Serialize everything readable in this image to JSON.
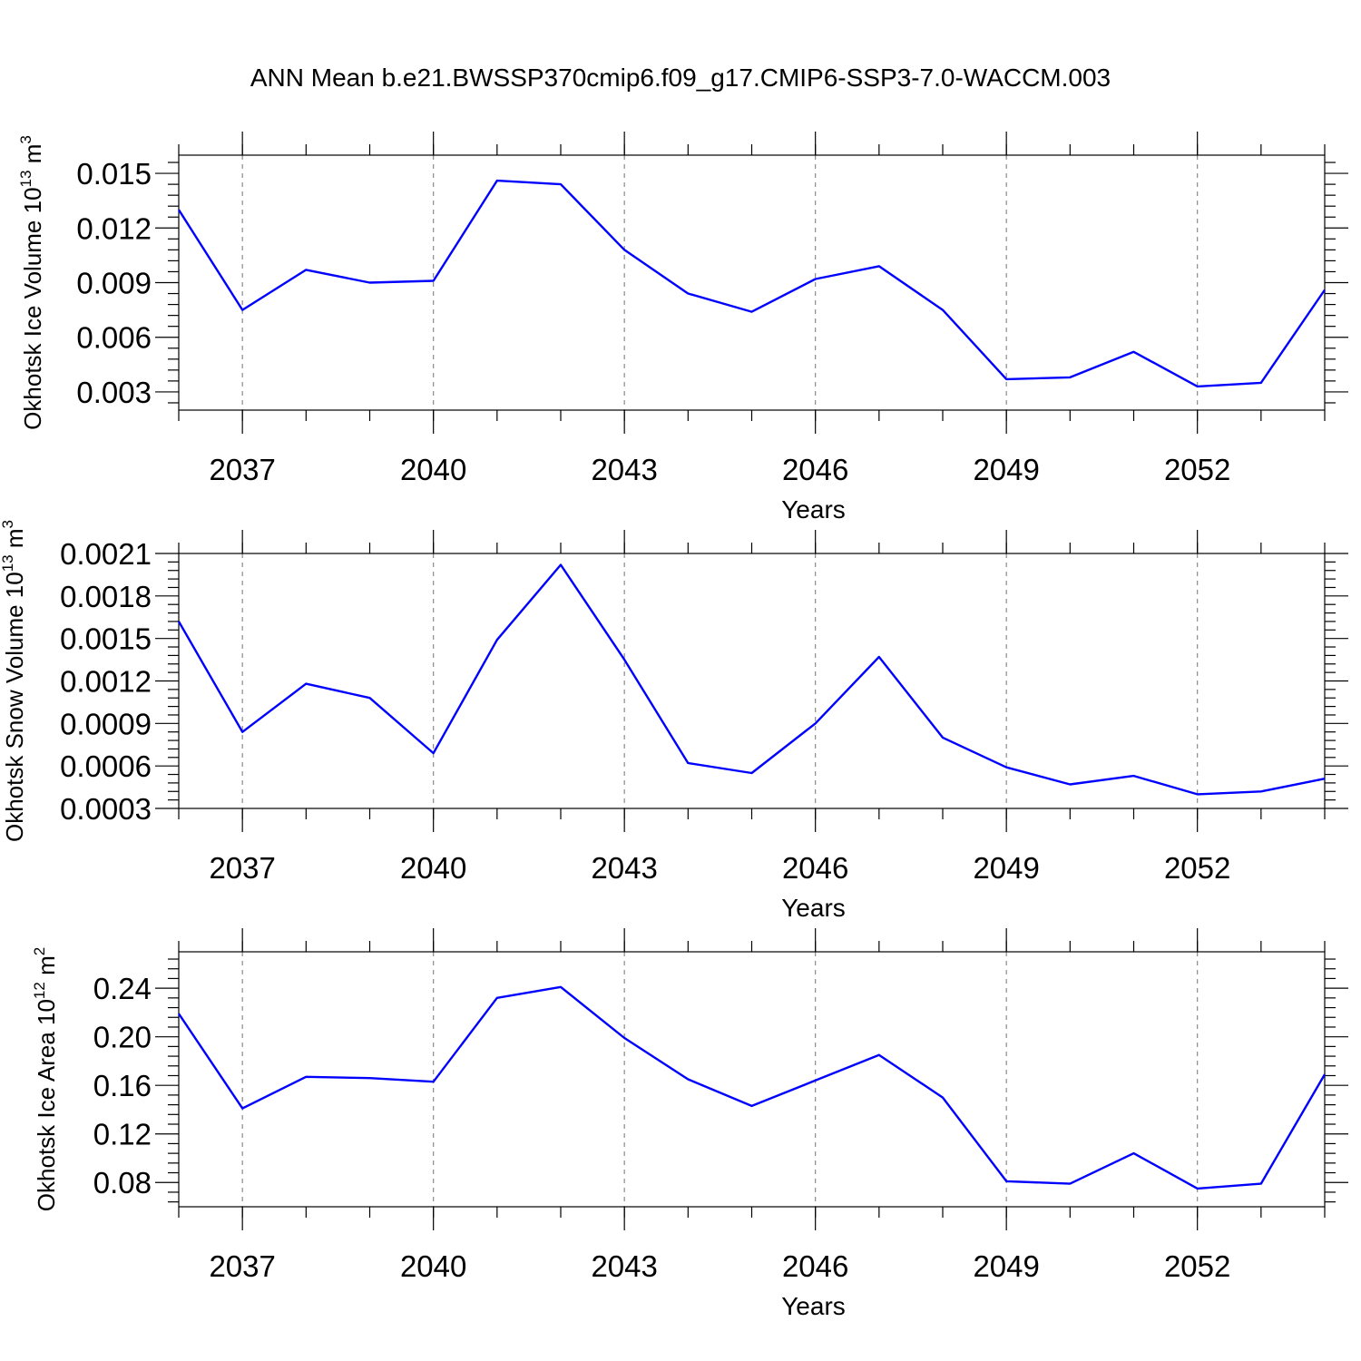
{
  "title": "ANN Mean b.e21.BWSSP370cmip6.f09_g17.CMIP6-SSP3-7.0-WACCM.003",
  "series_color": "#0000ff",
  "chart_data": [
    {
      "type": "line",
      "ylabel": "Okhotsk Ice Volume 10",
      "ylabel_exp": "13",
      "ylabel_unit": " m",
      "ylabel_unit_exp": "3",
      "xlabel": "Years",
      "xlim": [
        2036,
        2054
      ],
      "ylim": [
        0.002,
        0.016
      ],
      "xticks": [
        2037,
        2040,
        2043,
        2046,
        2049,
        2052
      ],
      "xtick_labels": [
        "2037",
        "2040",
        "2043",
        "2046",
        "2049",
        "2052"
      ],
      "yticks": [
        0.003,
        0.006,
        0.009,
        0.012,
        0.015
      ],
      "ytick_labels": [
        "0.003",
        "0.006",
        "0.009",
        "0.012",
        "0.015"
      ],
      "grid": "vertical-dashed",
      "x": [
        2036,
        2037,
        2038,
        2039,
        2040,
        2041,
        2042,
        2043,
        2044,
        2045,
        2046,
        2047,
        2048,
        2049,
        2050,
        2051,
        2052,
        2053,
        2054
      ],
      "y": [
        0.013,
        0.0075,
        0.0097,
        0.009,
        0.0091,
        0.0146,
        0.0144,
        0.0108,
        0.0084,
        0.0074,
        0.0092,
        0.0099,
        0.0075,
        0.0037,
        0.0038,
        0.0052,
        0.0033,
        0.0035,
        0.0086
      ]
    },
    {
      "type": "line",
      "ylabel": "Okhotsk Snow Volume 10",
      "ylabel_exp": "13",
      "ylabel_unit": " m",
      "ylabel_unit_exp": "3",
      "xlabel": "Years",
      "xlim": [
        2036,
        2054
      ],
      "ylim": [
        0.0003,
        0.0021
      ],
      "xticks": [
        2037,
        2040,
        2043,
        2046,
        2049,
        2052
      ],
      "xtick_labels": [
        "2037",
        "2040",
        "2043",
        "2046",
        "2049",
        "2052"
      ],
      "yticks": [
        0.0003,
        0.0006,
        0.0009,
        0.0012,
        0.0015,
        0.0018,
        0.0021
      ],
      "ytick_labels": [
        "0.0003",
        "0.0006",
        "0.0009",
        "0.0012",
        "0.0015",
        "0.0018",
        "0.0021"
      ],
      "grid": "vertical-dashed",
      "x": [
        2036,
        2037,
        2038,
        2039,
        2040,
        2041,
        2042,
        2043,
        2044,
        2045,
        2046,
        2047,
        2048,
        2049,
        2050,
        2051,
        2052,
        2053,
        2054
      ],
      "y": [
        0.00162,
        0.00084,
        0.00118,
        0.00108,
        0.00069,
        0.00149,
        0.00202,
        0.00135,
        0.00062,
        0.00055,
        0.0009,
        0.00137,
        0.0008,
        0.00059,
        0.00047,
        0.00053,
        0.0004,
        0.00042,
        0.00051
      ]
    },
    {
      "type": "line",
      "ylabel": "Okhotsk Ice Area 10",
      "ylabel_exp": "12",
      "ylabel_unit": " m",
      "ylabel_unit_exp": "2",
      "xlabel": "Years",
      "xlim": [
        2036,
        2054
      ],
      "ylim": [
        0.06,
        0.27
      ],
      "xticks": [
        2037,
        2040,
        2043,
        2046,
        2049,
        2052
      ],
      "xtick_labels": [
        "2037",
        "2040",
        "2043",
        "2046",
        "2049",
        "2052"
      ],
      "yticks": [
        0.08,
        0.12,
        0.16,
        0.2,
        0.24
      ],
      "ytick_labels": [
        "0.08",
        "0.12",
        "0.16",
        "0.20",
        "0.24"
      ],
      "grid": "vertical-dashed",
      "x": [
        2036,
        2037,
        2038,
        2039,
        2040,
        2041,
        2042,
        2043,
        2044,
        2045,
        2046,
        2047,
        2048,
        2049,
        2050,
        2051,
        2052,
        2053,
        2054
      ],
      "y": [
        0.219,
        0.141,
        0.167,
        0.166,
        0.163,
        0.232,
        0.241,
        0.199,
        0.165,
        0.143,
        0.164,
        0.185,
        0.15,
        0.081,
        0.079,
        0.104,
        0.075,
        0.079,
        0.169
      ]
    }
  ]
}
